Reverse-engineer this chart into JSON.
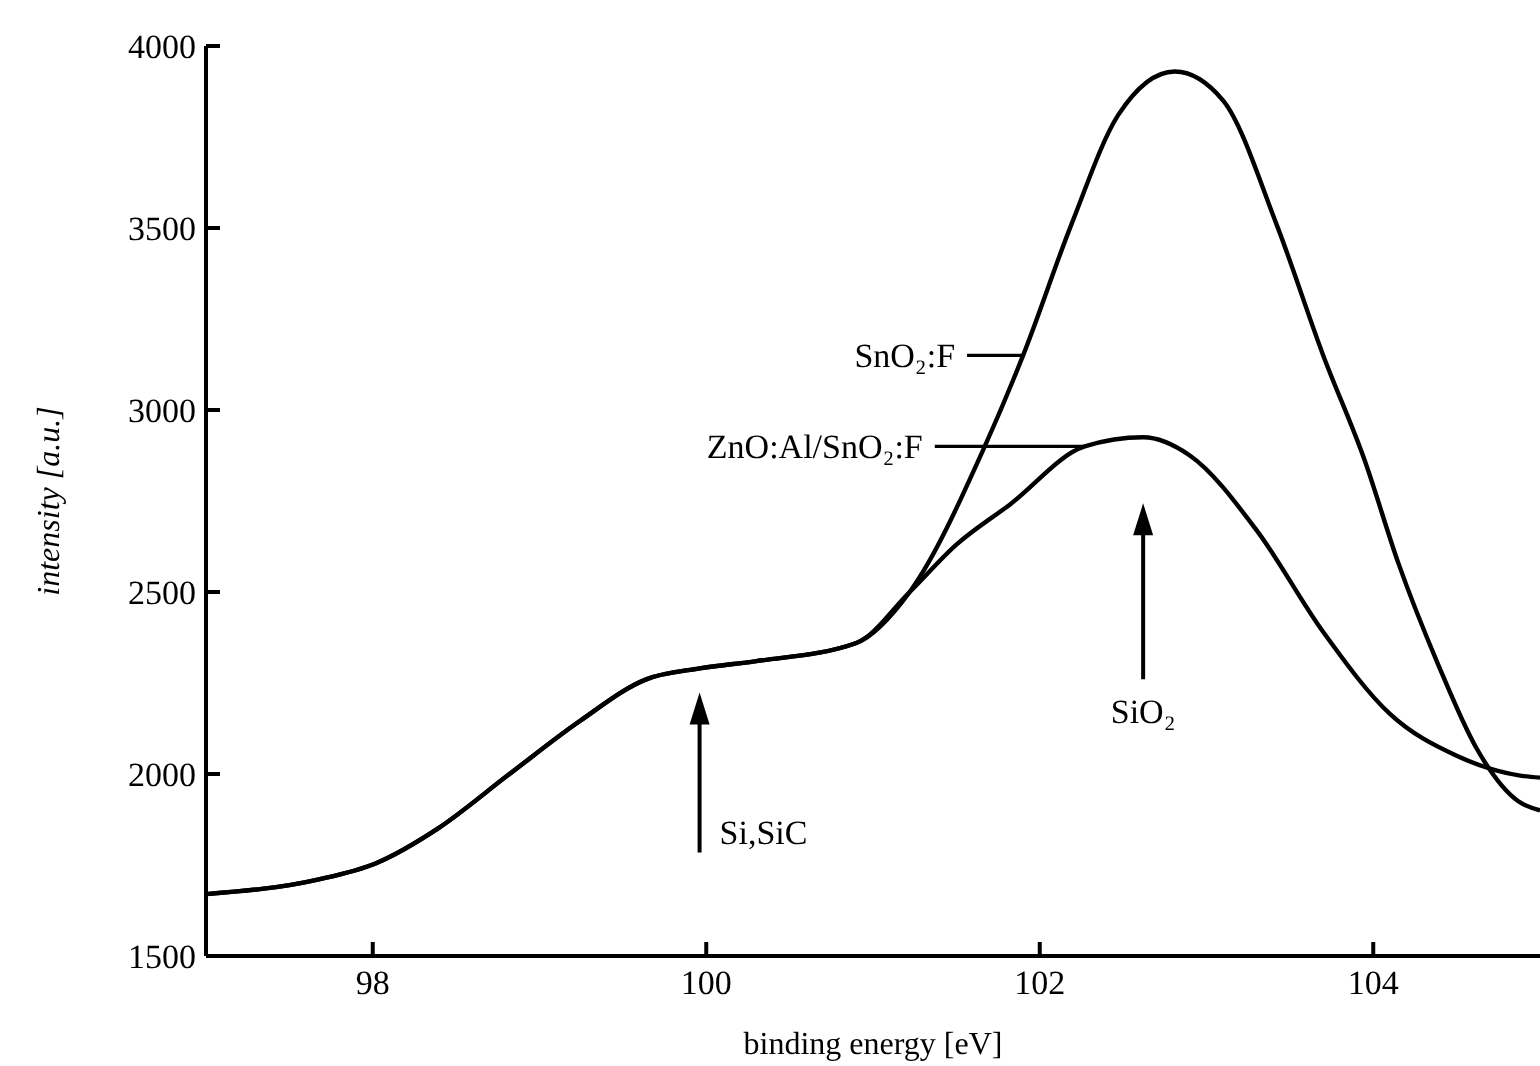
{
  "chart_data": {
    "type": "line",
    "xlabel": "binding energy [eV]",
    "ylabel": "intensity [a.u.]",
    "xlim": [
      97,
      105
    ],
    "xticks": [
      98,
      100,
      102,
      104
    ],
    "ylim": [
      1500,
      4000
    ],
    "yticks": [
      1500,
      2000,
      2500,
      3000,
      3500,
      4000
    ],
    "marker": "none",
    "line_style": "solid",
    "legend": "center",
    "series": [
      {
        "name": "SnO₂:F",
        "color": "#000000",
        "x": [
          97,
          97.67,
          98.02,
          98.39,
          98.82,
          99.24,
          99.64,
          99.96,
          100.3,
          100.9,
          101.22,
          101.67,
          101.9,
          102.19,
          102.47,
          102.81,
          103.1,
          103.42,
          103.7,
          103.95,
          104.15,
          104.39,
          104.62,
          104.87,
          105
        ],
        "values": [
          1670,
          1710,
          1755,
          1850,
          2000,
          2145,
          2260,
          2290,
          2310,
          2360,
          2500,
          2900,
          3150,
          3510,
          3810,
          3930,
          3850,
          3510,
          3150,
          2860,
          2580,
          2300,
          2070,
          1925,
          1900
        ]
      },
      {
        "name": "ZnO:Al/SnO₂:F",
        "color": "#000000",
        "x": [
          97,
          97.67,
          98.02,
          98.39,
          98.82,
          99.24,
          99.64,
          99.96,
          100.3,
          100.9,
          101.22,
          101.5,
          101.82,
          102.27,
          102.62,
          102.9,
          103.3,
          103.7,
          104.1,
          104.5,
          104.89,
          105
        ],
        "values": [
          1670,
          1710,
          1755,
          1850,
          2000,
          2145,
          2260,
          2290,
          2310,
          2360,
          2500,
          2630,
          2740,
          2900,
          2925,
          2875,
          2670,
          2390,
          2165,
          2050,
          1995,
          1990
        ]
      }
    ],
    "annotations": [
      "Si,SiC",
      "SiO₂"
    ]
  }
}
